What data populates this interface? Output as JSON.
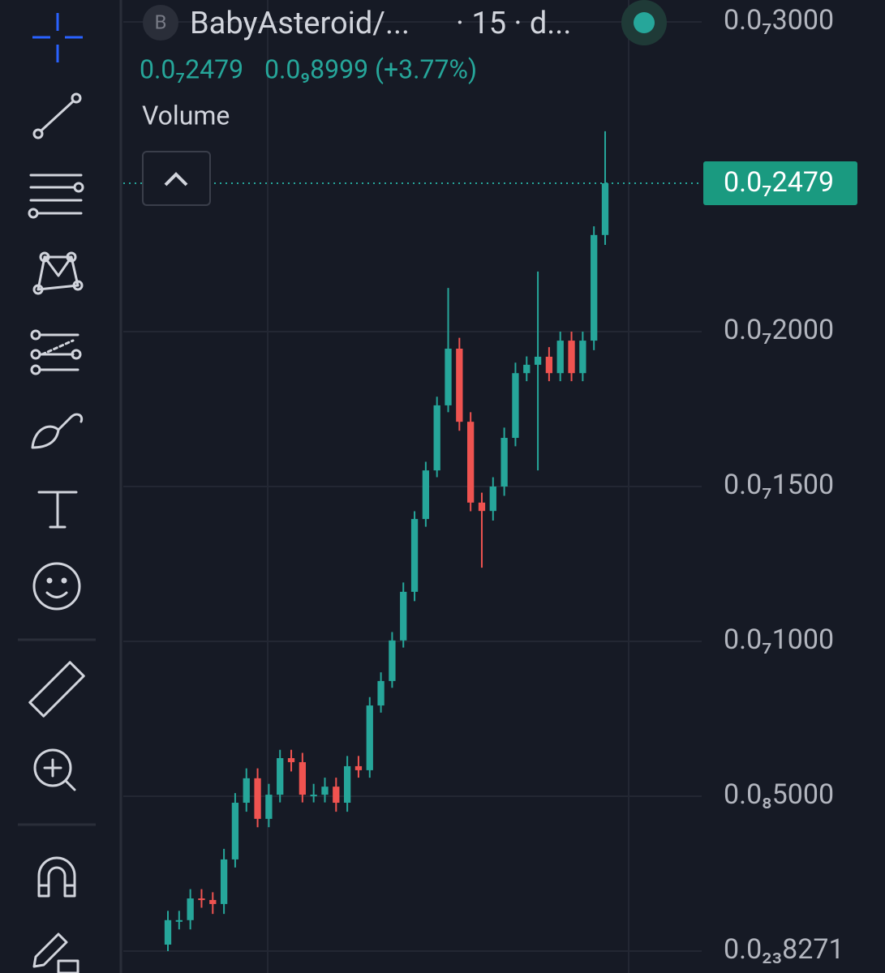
{
  "header": {
    "symbol_initial": "B",
    "symbol": "BabyAsteroid/...",
    "interval": "· 15 · d...",
    "price": "0.0₇2479",
    "change": "0.0₉8999 (+3.77%)",
    "indicator": "Volume"
  },
  "chart_data": {
    "type": "candlestick",
    "up_color": "#26a69a",
    "down_color": "#ef5350",
    "grid": true,
    "ylim": [
      -7.07e-10,
      3.0707e-08
    ],
    "yticks": [
      {
        "value": 3e-08,
        "label": "0.0₇3000"
      },
      {
        "value": 2e-08,
        "label": "0.0₇2000"
      },
      {
        "value": 1.5e-08,
        "label": "0.0₇1500"
      },
      {
        "value": 1e-08,
        "label": "0.0₇1000"
      },
      {
        "value": 5e-09,
        "label": "0.0₈5000"
      },
      {
        "value": 8.271e-24,
        "label": "0.0₂₃8271"
      }
    ],
    "last_price": {
      "value": 2.479e-08,
      "label": "0.0₇2479"
    },
    "open": [
      2.1e-10,
      1e-09,
      1e-09,
      1.7e-09,
      1.65e-09,
      1.52e-09,
      2.96e-09,
      4.79e-09,
      5.58e-09,
      4.27e-09,
      5.05e-09,
      6.23e-09,
      6.1e-09,
      5.05e-09,
      5.05e-09,
      5.31e-09,
      4.79e-09,
      5.97e-09,
      5.84e-09,
      7.93e-09,
      8.72e-09,
      1.003e-08,
      1.16e-08,
      1.395e-08,
      1.552e-08,
      1.762e-08,
      1.945e-08,
      1.709e-08,
      1.448e-08,
      1.421e-08,
      1.5e-08,
      1.657e-08,
      1.866e-08,
      1.893e-08,
      1.919e-08,
      1.866e-08,
      1.971e-08,
      1.866e-08,
      1.971e-08,
      2.312e-08
    ],
    "high": [
      1.3e-09,
      1.3e-09,
      2e-09,
      2e-09,
      1.9e-09,
      3.3e-09,
      5.1e-09,
      5.9e-09,
      5.9e-09,
      5.4e-09,
      6.5e-09,
      6.5e-09,
      6.4e-09,
      5.4e-09,
      5.6e-09,
      5.6e-09,
      6.3e-09,
      6.3e-09,
      8.2e-09,
      9e-09,
      1.03e-08,
      1.19e-08,
      1.42e-08,
      1.58e-08,
      1.79e-08,
      2.141e-08,
      1.98e-08,
      1.74e-08,
      1.48e-08,
      1.53e-08,
      1.69e-08,
      1.9e-08,
      1.92e-08,
      2.194e-08,
      1.95e-08,
      2e-08,
      2e-08,
      2e-08,
      2.34e-08,
      2.647e-08
    ],
    "low": [
      0.0,
      7e-10,
      7e-10,
      1.4e-09,
      1.2e-09,
      1.2e-09,
      2.7e-09,
      4.5e-09,
      4e-09,
      4e-09,
      4.8e-09,
      5.8e-09,
      4.8e-09,
      4.8e-09,
      4.8e-09,
      4.5e-09,
      4.5e-09,
      5.6e-09,
      5.6e-09,
      7.7e-09,
      8.5e-09,
      9.8e-09,
      1.13e-08,
      1.37e-08,
      1.53e-08,
      1.74e-08,
      1.68e-08,
      1.42e-08,
      1.238e-08,
      1.39e-08,
      1.47e-08,
      1.63e-08,
      1.84e-08,
      1.552e-08,
      1.84e-08,
      1.84e-08,
      1.84e-08,
      1.84e-08,
      1.94e-08,
      2.28e-08
    ],
    "close": [
      1e-09,
      1e-09,
      1.7e-09,
      1.65e-09,
      1.52e-09,
      2.96e-09,
      4.79e-09,
      5.58e-09,
      4.27e-09,
      5.05e-09,
      6.23e-09,
      6.1e-09,
      5.05e-09,
      5.05e-09,
      5.31e-09,
      4.79e-09,
      5.97e-09,
      5.84e-09,
      7.93e-09,
      8.72e-09,
      1.003e-08,
      1.16e-08,
      1.395e-08,
      1.552e-08,
      1.762e-08,
      1.945e-08,
      1.709e-08,
      1.448e-08,
      1.421e-08,
      1.5e-08,
      1.657e-08,
      1.866e-08,
      1.893e-08,
      1.919e-08,
      1.866e-08,
      1.971e-08,
      1.866e-08,
      1.971e-08,
      2.312e-08,
      2.479e-08
    ]
  }
}
